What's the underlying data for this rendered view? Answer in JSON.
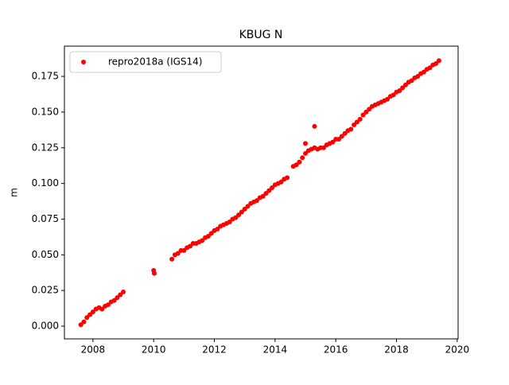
{
  "chart_data": {
    "type": "scatter",
    "title": "KBUG N",
    "ylabel": "m",
    "series": [
      {
        "name": "repro2018a (IGS14)",
        "color": "#ff0000",
        "x": [
          2007.6,
          2007.7,
          2007.8,
          2007.9,
          2008.0,
          2008.1,
          2008.2,
          2008.3,
          2008.4,
          2008.5,
          2008.6,
          2008.7,
          2008.8,
          2008.9,
          2009.0,
          2010.0,
          2010.02,
          2010.6,
          2010.7,
          2010.8,
          2010.9,
          2011.0,
          2011.1,
          2011.2,
          2011.3,
          2011.4,
          2011.5,
          2011.6,
          2011.7,
          2011.8,
          2011.9,
          2012.0,
          2012.1,
          2012.2,
          2012.3,
          2012.4,
          2012.5,
          2012.6,
          2012.7,
          2012.8,
          2012.9,
          2013.0,
          2013.1,
          2013.2,
          2013.3,
          2013.4,
          2013.5,
          2013.6,
          2013.7,
          2013.8,
          2013.9,
          2014.0,
          2014.1,
          2014.2,
          2014.3,
          2014.4,
          2014.6,
          2014.7,
          2014.8,
          2014.9,
          2015.0,
          2015.1,
          2015.2,
          2015.3,
          2015.4,
          2015.5,
          2015.6,
          2015.7,
          2015.8,
          2015.9,
          2016.0,
          2016.1,
          2016.2,
          2016.3,
          2016.4,
          2016.5,
          2016.6,
          2016.7,
          2016.8,
          2016.9,
          2017.0,
          2017.1,
          2017.2,
          2017.3,
          2017.4,
          2017.5,
          2017.6,
          2017.7,
          2017.8,
          2017.9,
          2018.0,
          2018.1,
          2018.2,
          2018.3,
          2018.4,
          2018.5,
          2018.6,
          2018.7,
          2018.8,
          2018.9,
          2019.0,
          2019.1,
          2019.2,
          2019.3,
          2019.4,
          2015.0,
          2015.3
        ],
        "values": [
          0.001,
          0.003,
          0.006,
          0.008,
          0.01,
          0.012,
          0.013,
          0.012,
          0.014,
          0.015,
          0.017,
          0.018,
          0.02,
          0.022,
          0.024,
          0.039,
          0.037,
          0.047,
          0.05,
          0.051,
          0.053,
          0.053,
          0.055,
          0.056,
          0.058,
          0.058,
          0.059,
          0.06,
          0.062,
          0.063,
          0.065,
          0.067,
          0.068,
          0.07,
          0.071,
          0.072,
          0.073,
          0.075,
          0.076,
          0.078,
          0.08,
          0.082,
          0.084,
          0.086,
          0.087,
          0.088,
          0.09,
          0.091,
          0.093,
          0.095,
          0.097,
          0.099,
          0.1,
          0.101,
          0.103,
          0.104,
          0.112,
          0.113,
          0.115,
          0.118,
          0.121,
          0.123,
          0.124,
          0.125,
          0.124,
          0.125,
          0.125,
          0.127,
          0.128,
          0.129,
          0.131,
          0.131,
          0.133,
          0.135,
          0.137,
          0.138,
          0.141,
          0.143,
          0.145,
          0.148,
          0.15,
          0.152,
          0.154,
          0.155,
          0.156,
          0.157,
          0.158,
          0.159,
          0.161,
          0.162,
          0.164,
          0.165,
          0.167,
          0.169,
          0.171,
          0.172,
          0.174,
          0.175,
          0.177,
          0.178,
          0.18,
          0.181,
          0.183,
          0.184,
          0.186,
          0.128,
          0.14
        ]
      }
    ],
    "xlim": [
      2007.06,
      2020.03
    ],
    "xticks": [
      2008,
      2010,
      2012,
      2014,
      2016,
      2018,
      2020
    ],
    "ylim": [
      -0.0089,
      0.1962
    ],
    "yticks": [
      {
        "value": 0,
        "label": "0.000"
      },
      {
        "value": 0.025,
        "label": "0.025"
      },
      {
        "value": 0.05,
        "label": "0.050"
      },
      {
        "value": 0.075,
        "label": "0.075"
      },
      {
        "value": 0.1,
        "label": "0.100"
      },
      {
        "value": 0.125,
        "label": "0.125"
      },
      {
        "value": 0.15,
        "label": "0.150"
      },
      {
        "value": 0.175,
        "label": "0.175"
      }
    ],
    "legend": "upper left",
    "grid": false
  }
}
